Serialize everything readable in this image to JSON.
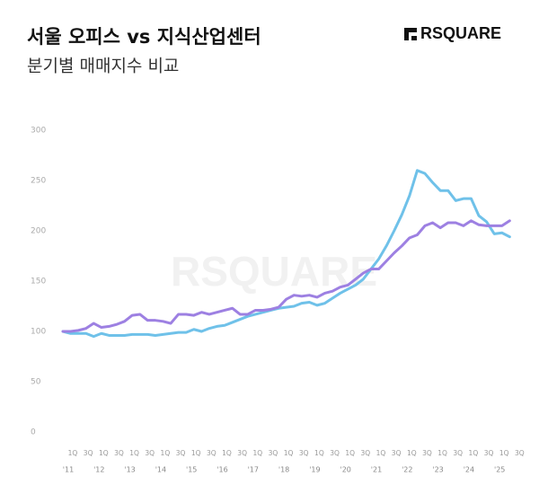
{
  "chart_data": {
    "type": "line",
    "title": "서울 오피스 vs 지식산업센터",
    "subtitle": "분기별 매매지수 비교",
    "logo": "RSQUARE",
    "watermark": "RSQUARE",
    "categories": [
      "1Q",
      null,
      "3Q",
      null,
      "1Q",
      null,
      "3Q",
      null,
      "1Q",
      null,
      "3Q",
      null,
      "1Q",
      null,
      "3Q",
      null,
      "1Q",
      null,
      "3Q",
      null,
      "1Q",
      null,
      "3Q",
      null,
      "1Q",
      null,
      "3Q",
      null,
      "1Q",
      null,
      "3Q",
      null,
      "1Q",
      null,
      "3Q",
      null,
      "1Q",
      null,
      "3Q",
      null,
      "1Q",
      null,
      "3Q",
      null,
      "1Q",
      null,
      "3Q",
      null,
      "1Q",
      null,
      "3Q",
      null,
      "1Q",
      null,
      "3Q",
      null,
      "1Q",
      null,
      "3Q"
    ],
    "year_labels": [
      "'11",
      "'12",
      "'13",
      "'14",
      "'15",
      "'16",
      "'17",
      "'18",
      "'19",
      "'20",
      "'21",
      "'22",
      "'23",
      "'24",
      "'25"
    ],
    "series": [
      {
        "color": "#6fc1e9",
        "values": [
          100,
          98,
          98,
          98,
          95,
          98,
          96,
          96,
          96,
          97,
          97,
          97,
          96,
          97,
          98,
          99,
          99,
          102,
          100,
          103,
          105,
          106,
          109,
          112,
          115,
          117,
          119,
          121,
          123,
          124,
          125,
          128,
          129,
          126,
          128,
          133,
          138,
          142,
          146,
          152,
          162,
          172,
          185,
          200,
          216,
          235,
          260,
          257,
          248,
          240,
          240,
          230,
          232,
          232,
          215,
          209,
          197,
          198,
          194
        ]
      },
      {
        "color": "#9d80e2",
        "values": [
          100,
          100,
          101,
          103,
          108,
          104,
          105,
          107,
          110,
          116,
          117,
          111,
          111,
          110,
          108,
          117,
          117,
          116,
          119,
          117,
          119,
          121,
          123,
          117,
          117,
          121,
          121,
          122,
          124,
          132,
          136,
          135,
          136,
          134,
          138,
          140,
          144,
          146,
          152,
          158,
          162,
          162,
          170,
          178,
          185,
          193,
          196,
          205,
          208,
          203,
          208,
          208,
          205,
          210,
          206,
          205,
          205,
          205,
          210
        ]
      }
    ],
    "ylim": [
      0,
      300
    ],
    "yticks": [
      0,
      50,
      100,
      150,
      200,
      250,
      300
    ]
  }
}
